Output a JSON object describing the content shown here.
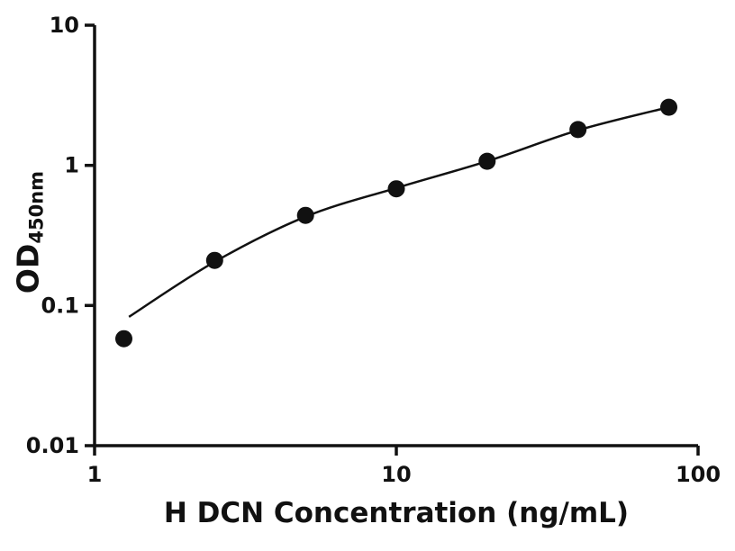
{
  "chart_data": {
    "type": "scatter",
    "title": "",
    "xlabel": "H DCN Concentration (ng/mL)",
    "ylabel_main": "OD",
    "ylabel_sub": "450nm",
    "xscale": "log",
    "yscale": "log",
    "xlim": [
      1,
      100
    ],
    "ylim": [
      0.01,
      10
    ],
    "grid": false,
    "legend": false,
    "marker_color": "#111111",
    "line_color": "#111111",
    "x_ticks": [
      {
        "v": 1,
        "label": "1"
      },
      {
        "v": 10,
        "label": "10"
      },
      {
        "v": 100,
        "label": "100"
      }
    ],
    "y_ticks": [
      {
        "v": 0.01,
        "label": "0.01"
      },
      {
        "v": 0.1,
        "label": "0.1"
      },
      {
        "v": 1,
        "label": "1"
      },
      {
        "v": 10,
        "label": "10"
      }
    ],
    "points": [
      {
        "x": 1.25,
        "y": 0.058
      },
      {
        "x": 2.5,
        "y": 0.21
      },
      {
        "x": 5,
        "y": 0.44
      },
      {
        "x": 10,
        "y": 0.68
      },
      {
        "x": 20,
        "y": 1.07
      },
      {
        "x": 40,
        "y": 1.8
      },
      {
        "x": 80,
        "y": 2.6
      }
    ],
    "fit_curve": [
      {
        "x": 1.3,
        "y": 0.083
      },
      {
        "x": 2.5,
        "y": 0.205
      },
      {
        "x": 5,
        "y": 0.43
      },
      {
        "x": 10,
        "y": 0.69
      },
      {
        "x": 20,
        "y": 1.07
      },
      {
        "x": 40,
        "y": 1.78
      },
      {
        "x": 80,
        "y": 2.6
      }
    ]
  }
}
